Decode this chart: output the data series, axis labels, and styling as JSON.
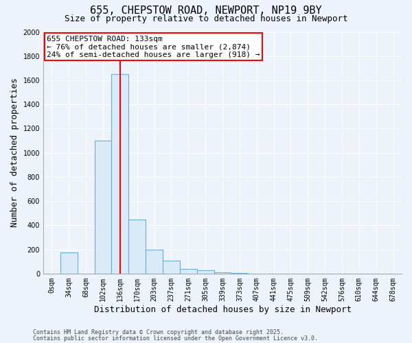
{
  "title": "655, CHEPSTOW ROAD, NEWPORT, NP19 9BY",
  "subtitle": "Size of property relative to detached houses in Newport",
  "xlabel": "Distribution of detached houses by size in Newport",
  "ylabel": "Number of detached properties",
  "bar_values": [
    0,
    175,
    0,
    1100,
    1650,
    450,
    200,
    105,
    40,
    25,
    10,
    5,
    0,
    0,
    0,
    0,
    0,
    0,
    0,
    0,
    0
  ],
  "categories": [
    "0sqm",
    "34sqm",
    "68sqm",
    "102sqm",
    "136sqm",
    "170sqm",
    "203sqm",
    "237sqm",
    "271sqm",
    "305sqm",
    "339sqm",
    "373sqm",
    "407sqm",
    "441sqm",
    "475sqm",
    "509sqm",
    "542sqm",
    "576sqm",
    "610sqm",
    "644sqm",
    "678sqm"
  ],
  "bar_color": "#daeaf7",
  "bar_edge_color": "#6aaed6",
  "red_line_index": 4,
  "ylim": [
    0,
    2000
  ],
  "yticks": [
    0,
    200,
    400,
    600,
    800,
    1000,
    1200,
    1400,
    1600,
    1800,
    2000
  ],
  "annotation_text": "655 CHEPSTOW ROAD: 133sqm\n← 76% of detached houses are smaller (2,874)\n24% of semi-detached houses are larger (918) →",
  "footer_line1": "Contains HM Land Registry data © Crown copyright and database right 2025.",
  "footer_line2": "Contains public sector information licensed under the Open Government Licence v3.0.",
  "background_color": "#eef3fb",
  "plot_background": "#eef3fb",
  "grid_color": "#ffffff",
  "title_fontsize": 11,
  "subtitle_fontsize": 9,
  "axis_label_fontsize": 9,
  "tick_fontsize": 7,
  "footer_fontsize": 6,
  "ann_fontsize": 8
}
